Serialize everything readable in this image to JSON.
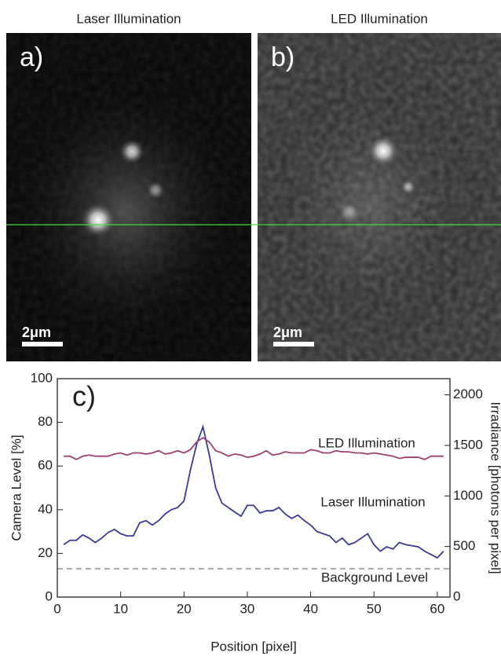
{
  "panels": [
    {
      "title": "Laser Illumination",
      "label": "a)",
      "scale_bar": "2μm"
    },
    {
      "title": "LED Illumination",
      "label": "b)",
      "scale_bar": "2μm"
    }
  ],
  "chart_data": {
    "type": "line",
    "label": "c)",
    "x_label": "Position [pixel]",
    "y_label": "Camera Level [%]",
    "y2_label": "Irradiance [photons per pixel]",
    "x": [
      1,
      2,
      3,
      4,
      5,
      6,
      7,
      8,
      9,
      10,
      11,
      12,
      13,
      14,
      15,
      16,
      17,
      18,
      19,
      20,
      21,
      22,
      23,
      24,
      25,
      26,
      27,
      28,
      29,
      30,
      31,
      32,
      33,
      34,
      35,
      36,
      37,
      38,
      39,
      40,
      41,
      42,
      43,
      44,
      45,
      46,
      47,
      48,
      49,
      50,
      51,
      52,
      53,
      54,
      55,
      56,
      57,
      58,
      59,
      60,
      61
    ],
    "series": [
      {
        "name": "Laser Illumination",
        "color": "#3a3a9a",
        "values": [
          24,
          26,
          26,
          28.5,
          27,
          25,
          27,
          29.5,
          31,
          29,
          28,
          28,
          34,
          35,
          33,
          35,
          38,
          40,
          41,
          44,
          58,
          70,
          78,
          65,
          50,
          43,
          41,
          39,
          37,
          42,
          42,
          38.5,
          39.5,
          39.5,
          41,
          38,
          36,
          37.5,
          35,
          33,
          30,
          29,
          28,
          25,
          27,
          24,
          25,
          27,
          29,
          24,
          21,
          23,
          22,
          25,
          24,
          23.5,
          23,
          21,
          19.5,
          18,
          21
        ]
      },
      {
        "name": "LED Illumination",
        "color": "#a0406e",
        "values": [
          64.5,
          64.5,
          63,
          64.5,
          65,
          64.5,
          64.5,
          64.5,
          65.5,
          66,
          65,
          66,
          66,
          65.5,
          66,
          67,
          65.5,
          66,
          67,
          66,
          67.5,
          71,
          73,
          71,
          67,
          66,
          64.5,
          65.5,
          65,
          64,
          64.5,
          65.5,
          67,
          65,
          65.5,
          66.5,
          66,
          66,
          66,
          67.5,
          67,
          66,
          66,
          67,
          66.5,
          66.5,
          66,
          66,
          65.5,
          66,
          65.5,
          65,
          64.5,
          63.5,
          64,
          64,
          64,
          63,
          64.5,
          64.5,
          64.5
        ]
      }
    ],
    "reference_line": {
      "name": "Background Level",
      "value": 13,
      "color": "#aaaaaa"
    },
    "xlim": [
      0,
      62
    ],
    "xticks": [
      0,
      10,
      20,
      30,
      40,
      50,
      60
    ],
    "ylim": [
      0,
      100
    ],
    "yticks": [
      0,
      20,
      40,
      60,
      80,
      100
    ],
    "y2lim": [
      0,
      2160
    ],
    "y2ticks": [
      0,
      500,
      1000,
      1500,
      2000
    ]
  }
}
